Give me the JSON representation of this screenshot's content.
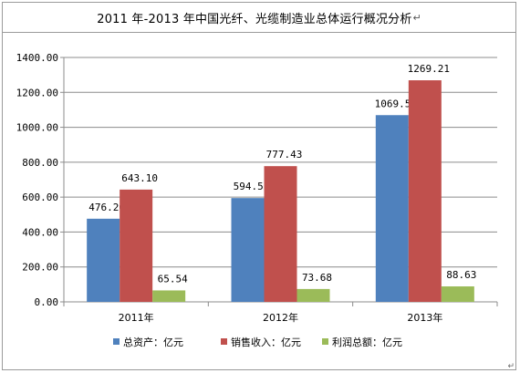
{
  "title": "2011 年-2013 年中国光纤、光缆制造业总体运行概况分析",
  "title_mark": "↵",
  "corner_mark": "↵",
  "chart_data": {
    "type": "bar",
    "categories": [
      "2011年",
      "2012年",
      "2013年"
    ],
    "ylim": [
      0,
      1400
    ],
    "yticks": [
      "0.00",
      "200.00",
      "400.00",
      "600.00",
      "800.00",
      "1000.00",
      "1200.00",
      "1400.00"
    ],
    "series": [
      {
        "name": "总资产：亿元",
        "color": "#4f81bd",
        "values": [
          476.26,
          594.55,
          1069.58
        ],
        "labels": [
          "476.26",
          "594.55",
          "1069.58"
        ]
      },
      {
        "name": "销售收入：亿元",
        "color": "#c0504d",
        "values": [
          643.1,
          777.43,
          1269.21
        ],
        "labels": [
          "643.10",
          "777.43",
          "1269.21"
        ]
      },
      {
        "name": "利润总额：亿元",
        "color": "#9bbb59",
        "values": [
          65.54,
          73.68,
          88.63
        ],
        "labels": [
          "65.54",
          "73.68",
          "88.63"
        ]
      }
    ],
    "grid": true,
    "legend_position": "bottom"
  }
}
